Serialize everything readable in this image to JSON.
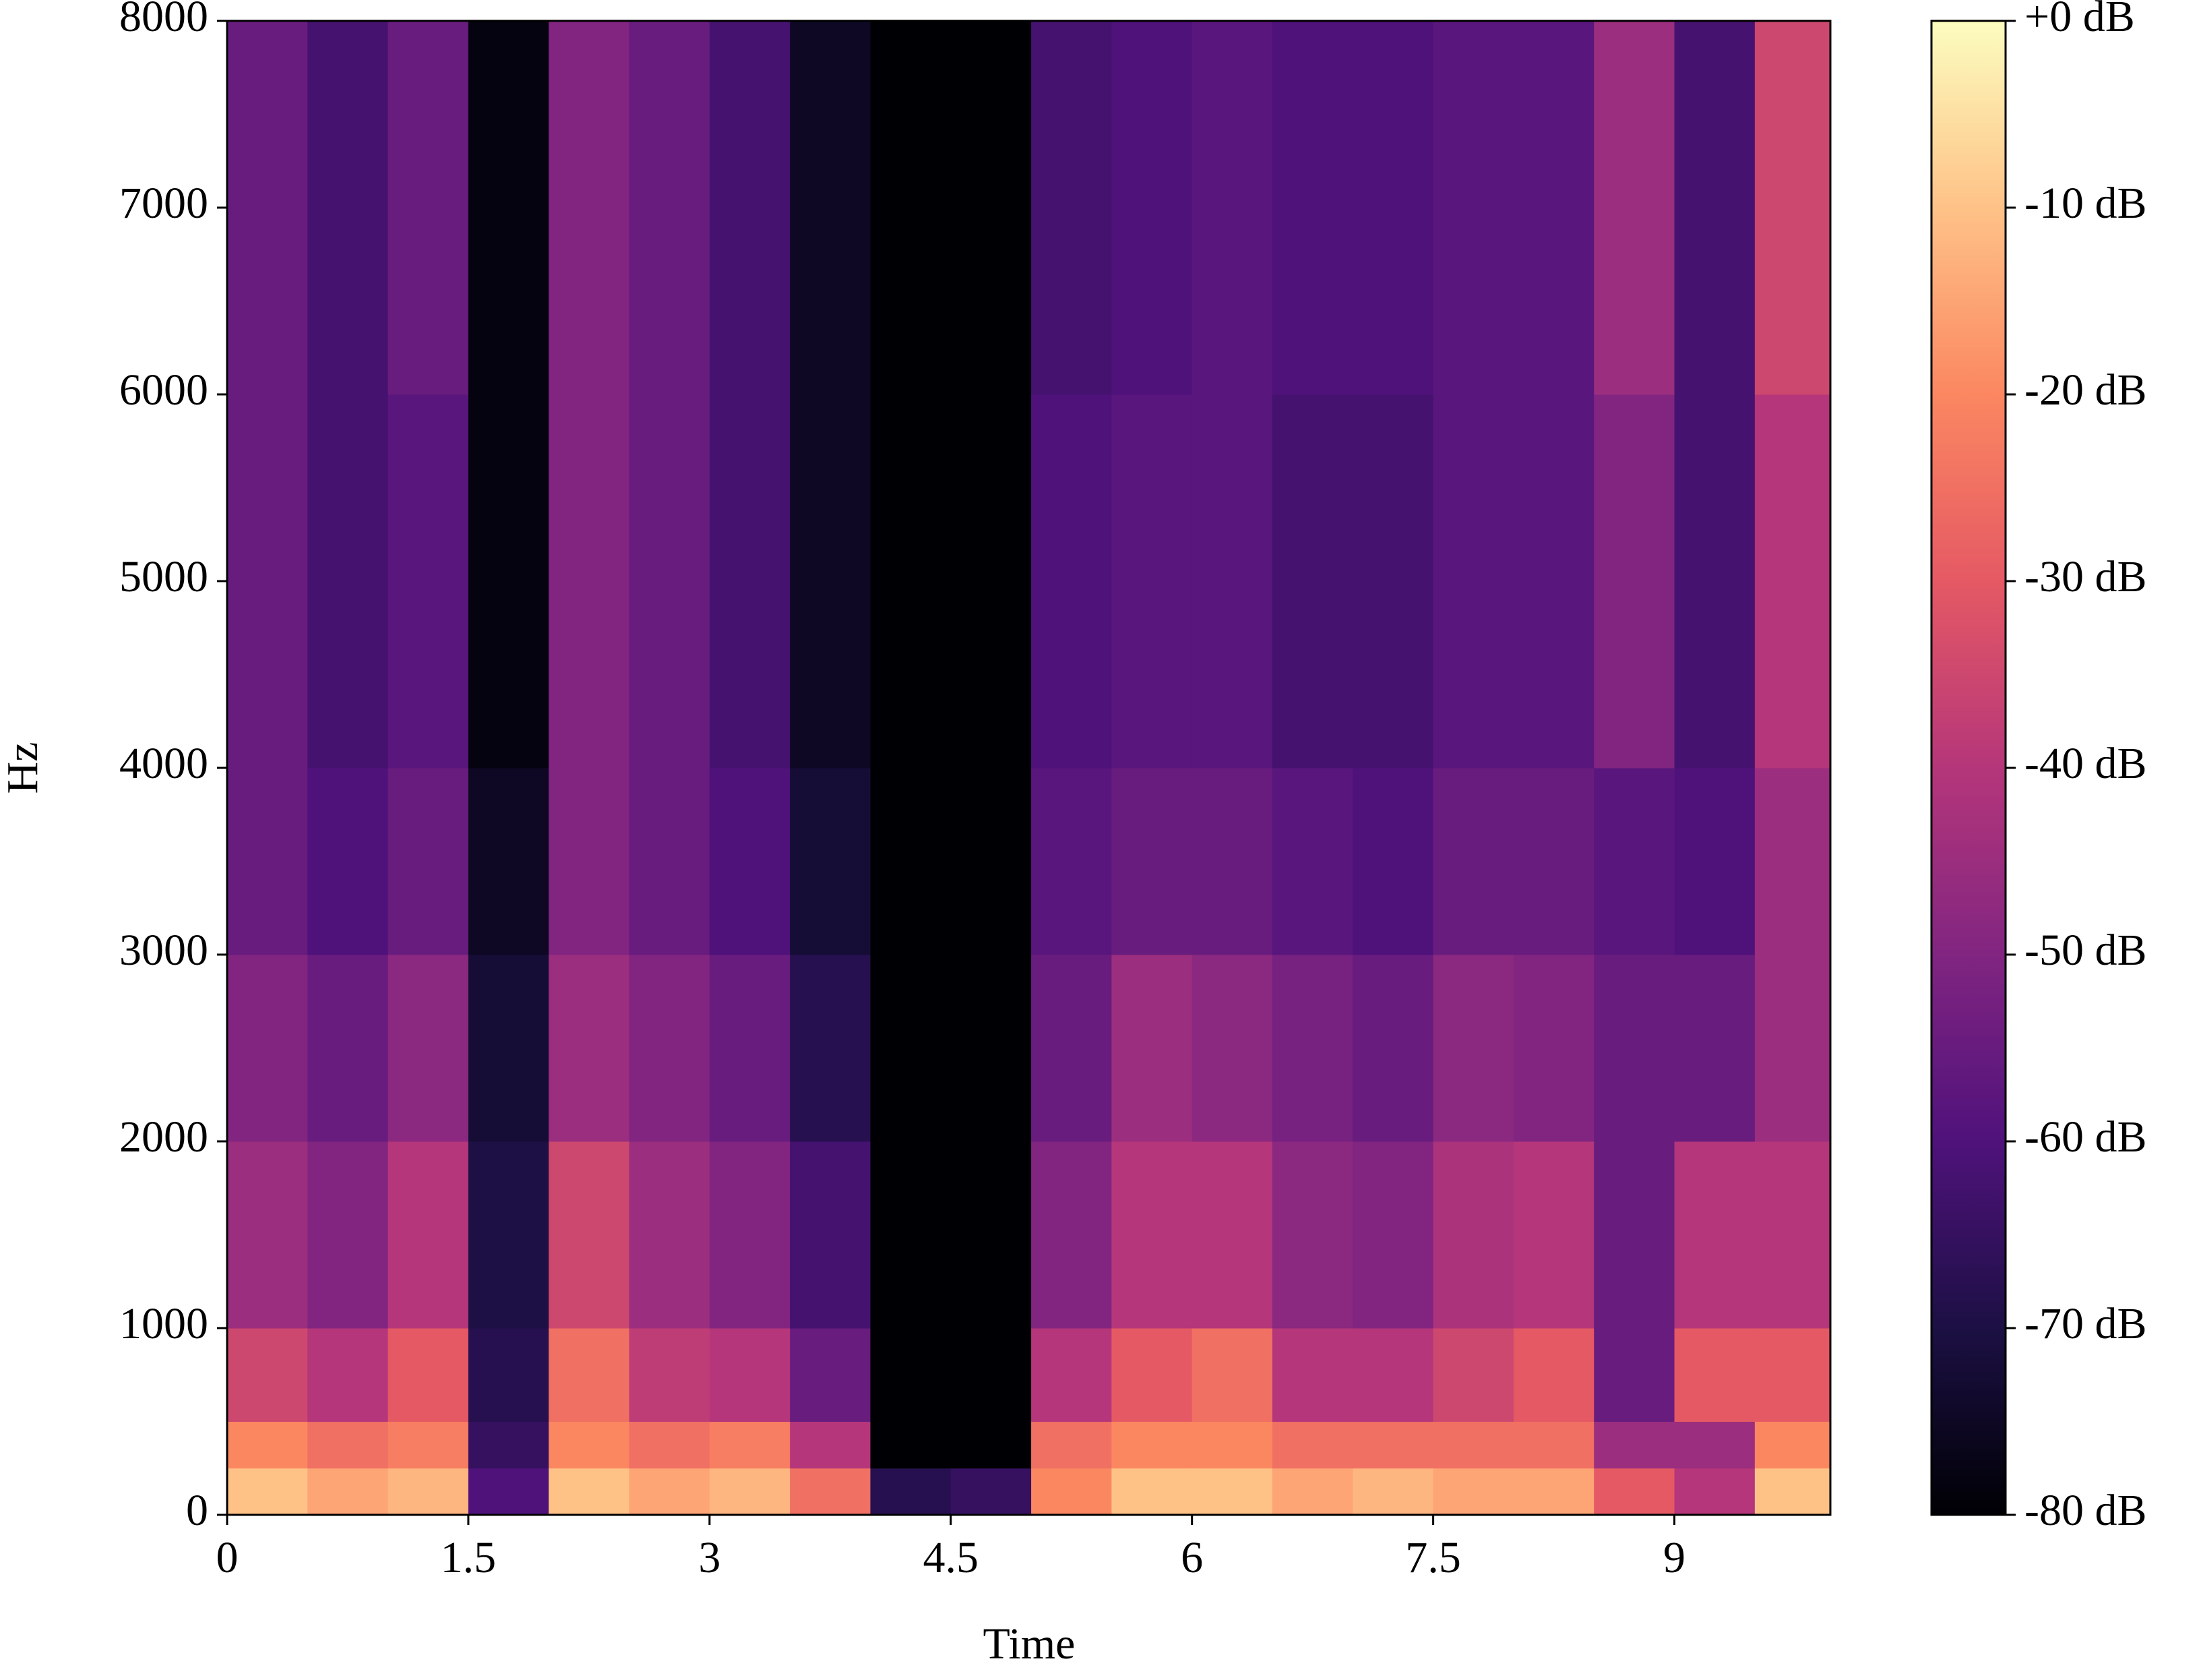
{
  "chart_data": {
    "type": "heatmap",
    "xlabel": "Time",
    "ylabel": "Hz",
    "colormap": "magma",
    "xlim": [
      0,
      9.97
    ],
    "xticks": [
      0,
      1.5,
      3,
      4.5,
      6,
      7.5,
      9
    ],
    "ylim": [
      0,
      8000
    ],
    "yticks": [
      0,
      1000,
      2000,
      3000,
      4000,
      5000,
      6000,
      7000,
      8000
    ],
    "x_edges": [
      0,
      0.5,
      1,
      1.5,
      2,
      2.5,
      3,
      3.5,
      4,
      4.5,
      5,
      5.5,
      6,
      6.5,
      7,
      7.5,
      8,
      8.5,
      9,
      9.5,
      9.97
    ],
    "y_edges": [
      0,
      250,
      500,
      1000,
      2000,
      3000,
      4000,
      6000,
      8000
    ],
    "values": [
      [
        -10,
        -20,
        -35,
        -45,
        -50,
        -55,
        -55,
        -55
      ],
      [
        -15,
        -25,
        -40,
        -50,
        -55,
        -60,
        -62,
        -62
      ],
      [
        -12,
        -22,
        -30,
        -40,
        -48,
        -55,
        -58,
        -55
      ],
      [
        -60,
        -65,
        -68,
        -70,
        -72,
        -75,
        -78,
        -78
      ],
      [
        -10,
        -20,
        -25,
        -35,
        -45,
        -50,
        -50,
        -50
      ],
      [
        -15,
        -25,
        -38,
        -45,
        -50,
        -55,
        -55,
        -55
      ],
      [
        -12,
        -22,
        -40,
        -50,
        -55,
        -60,
        -62,
        -62
      ],
      [
        -25,
        -40,
        -55,
        -62,
        -68,
        -72,
        -75,
        -75
      ],
      [
        -68,
        -80,
        -80,
        -80,
        -80,
        -80,
        -80,
        -80
      ],
      [
        -65,
        -80,
        -80,
        -80,
        -80,
        -80,
        -80,
        -80
      ],
      [
        -20,
        -25,
        -40,
        -50,
        -55,
        -58,
        -60,
        -62
      ],
      [
        -10,
        -20,
        -30,
        -40,
        -45,
        -55,
        -58,
        -60
      ],
      [
        -10,
        -20,
        -25,
        -40,
        -48,
        -55,
        -58,
        -58
      ],
      [
        -15,
        -25,
        -40,
        -48,
        -52,
        -58,
        -62,
        -60
      ],
      [
        -12,
        -25,
        -40,
        -50,
        -55,
        -60,
        -62,
        -60
      ],
      [
        -15,
        -25,
        -35,
        -42,
        -48,
        -55,
        -58,
        -58
      ],
      [
        -15,
        -25,
        -30,
        -40,
        -50,
        -55,
        -58,
        -58
      ],
      [
        -30,
        -45,
        -55,
        -55,
        -55,
        -58,
        -50,
        -45
      ],
      [
        -40,
        -45,
        -30,
        -40,
        -55,
        -60,
        -62,
        -62
      ],
      [
        -10,
        -20,
        -30,
        -40,
        -45,
        -45,
        -40,
        -35
      ]
    ],
    "clim": [
      -80,
      0
    ],
    "cticks": [
      {
        "value": 0,
        "label": "+0 dB"
      },
      {
        "value": -10,
        "label": "-10 dB"
      },
      {
        "value": -20,
        "label": "-20 dB"
      },
      {
        "value": -30,
        "label": "-30 dB"
      },
      {
        "value": -40,
        "label": "-40 dB"
      },
      {
        "value": -50,
        "label": "-50 dB"
      },
      {
        "value": -60,
        "label": "-60 dB"
      },
      {
        "value": -70,
        "label": "-70 dB"
      },
      {
        "value": -80,
        "label": "-80 dB"
      }
    ]
  }
}
